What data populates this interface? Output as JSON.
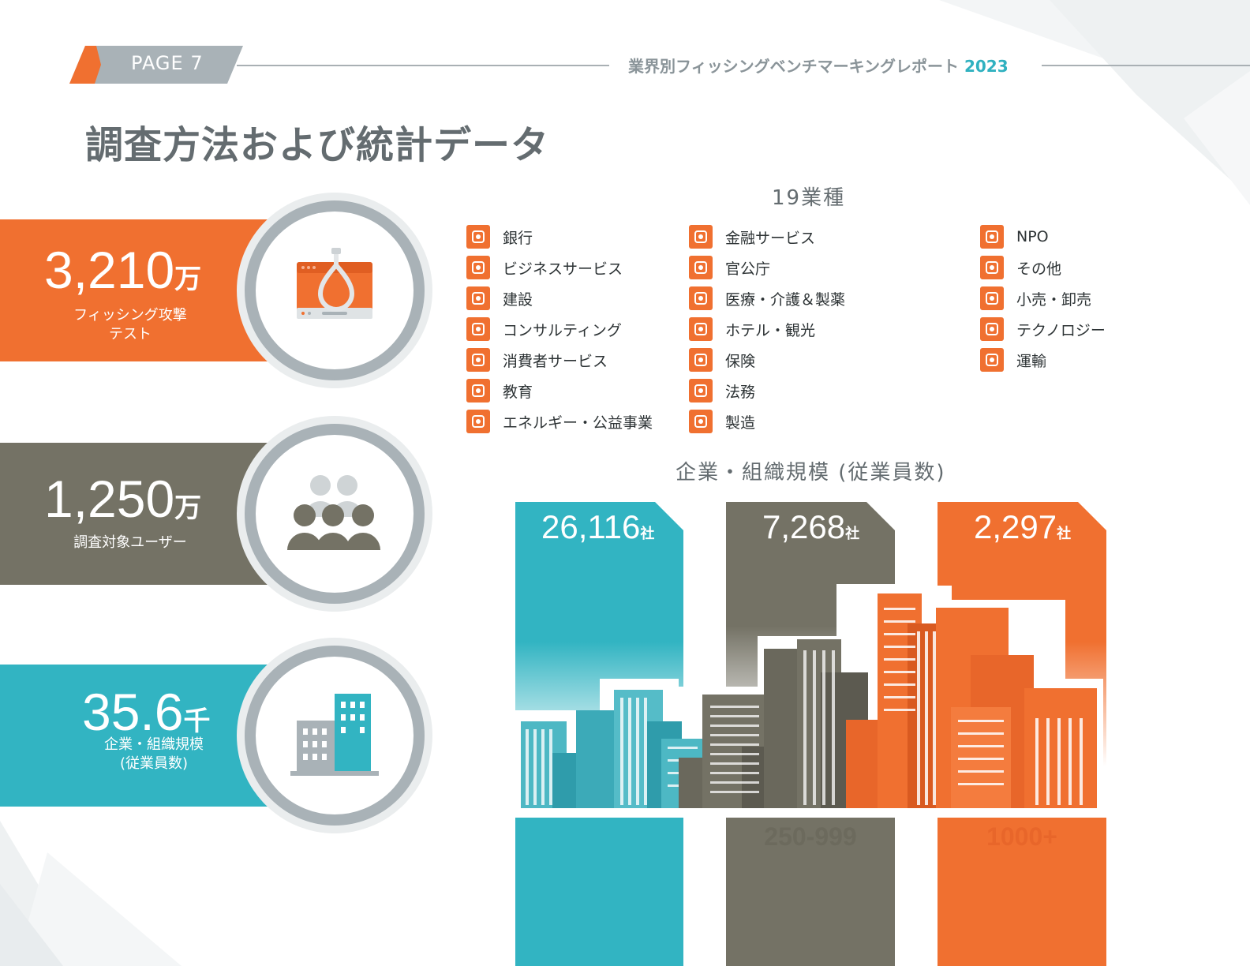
{
  "header": {
    "page_label": "PAGE  7",
    "report_title": "業界別フィッシングベンチマーキングレポート",
    "report_year": "2023"
  },
  "main_title": "調査方法および統計データ",
  "stats": [
    {
      "value": "3,210",
      "unit": "万",
      "label_line1": "フィッシング攻撃",
      "label_line2": "テスト",
      "icon": "phishing-laptop-icon"
    },
    {
      "value": "1,250",
      "unit": "万",
      "label_line1": "調査対象ユーザー",
      "label_line2": "",
      "icon": "users-group-icon"
    },
    {
      "value": "35.6",
      "unit": "千",
      "label_line1": "企業・組織規模",
      "label_line2": "(従業員数)",
      "icon": "buildings-icon"
    }
  ],
  "industries": {
    "heading": "19業種",
    "col1": [
      "銀行",
      "ビジネスサービス",
      "建設",
      "コンサルティング",
      "消費者サービス",
      "教育",
      "エネルギー・公益事業"
    ],
    "col2": [
      "金融サービス",
      "官公庁",
      "医療・介護＆製薬",
      "ホテル・観光",
      "保険",
      "法務",
      "製造"
    ],
    "col3": [
      "NPO",
      "その他",
      "小売・卸売",
      "テクノロジー",
      "運輸"
    ]
  },
  "org_size": {
    "heading": "企業・組織規模 (従業員数)",
    "columns": [
      {
        "count": "26,116",
        "unit": "社",
        "range": "",
        "color": "#32b4c2"
      },
      {
        "count": "7,268",
        "unit": "社",
        "range": "250-999",
        "color": "#747265"
      },
      {
        "count": "2,297",
        "unit": "社",
        "range": "1000+",
        "color": "#f07030"
      }
    ]
  },
  "colors": {
    "orange": "#f07030",
    "gray": "#747265",
    "teal": "#32b4c2",
    "ring": "#a9b2b7"
  }
}
